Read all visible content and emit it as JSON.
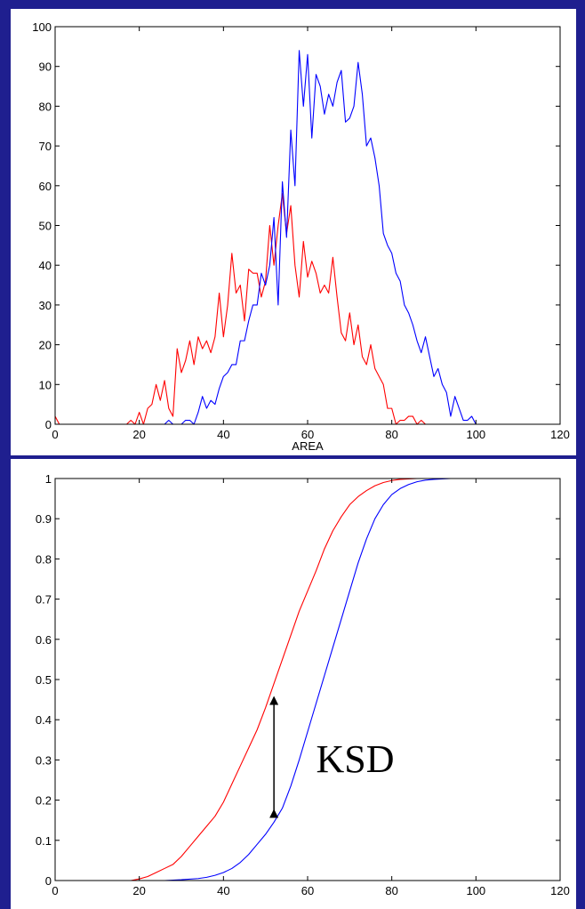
{
  "chart_data": [
    {
      "type": "line",
      "title": "",
      "xlabel": "AREA",
      "ylabel": "",
      "xlim": [
        0,
        120
      ],
      "ylim": [
        0,
        100
      ],
      "xticks": [
        0,
        20,
        40,
        60,
        80,
        100,
        120
      ],
      "yticks": [
        0,
        10,
        20,
        30,
        40,
        50,
        60,
        70,
        80,
        90,
        100
      ],
      "grid": false,
      "series": [
        {
          "color": "#ff0000",
          "x": [
            0,
            1,
            2,
            17,
            18,
            19,
            20,
            21,
            22,
            23,
            24,
            25,
            26,
            27,
            28,
            29,
            30,
            31,
            32,
            33,
            34,
            35,
            36,
            37,
            38,
            39,
            40,
            41,
            42,
            43,
            44,
            45,
            46,
            47,
            48,
            49,
            50,
            51,
            52,
            53,
            54,
            55,
            56,
            57,
            58,
            59,
            60,
            61,
            62,
            63,
            64,
            65,
            66,
            67,
            68,
            69,
            70,
            71,
            72,
            73,
            74,
            75,
            76,
            77,
            78,
            79,
            80,
            81,
            82,
            83,
            84,
            85,
            86,
            87,
            88,
            90,
            95,
            100
          ],
          "y": [
            2,
            0,
            0,
            0,
            1,
            0,
            3,
            0,
            4,
            5,
            10,
            6,
            11,
            4,
            2,
            19,
            13,
            16,
            21,
            15,
            22,
            19,
            21,
            18,
            22,
            33,
            22,
            30,
            43,
            33,
            35,
            26,
            39,
            38,
            38,
            32,
            36,
            50,
            40,
            50,
            58,
            48,
            55,
            40,
            32,
            46,
            37,
            41,
            38,
            33,
            35,
            33,
            42,
            32,
            23,
            21,
            28,
            20,
            25,
            17,
            15,
            20,
            14,
            12,
            10,
            4,
            4,
            0,
            1,
            1,
            2,
            2,
            0,
            1,
            0,
            0,
            0,
            0
          ]
        },
        {
          "color": "#0000ff",
          "x": [
            0,
            26,
            27,
            28,
            29,
            30,
            31,
            32,
            33,
            34,
            35,
            36,
            37,
            38,
            39,
            40,
            41,
            42,
            43,
            44,
            45,
            46,
            47,
            48,
            49,
            50,
            51,
            52,
            53,
            54,
            55,
            56,
            57,
            58,
            59,
            60,
            61,
            62,
            63,
            64,
            65,
            66,
            67,
            68,
            69,
            70,
            71,
            72,
            73,
            74,
            75,
            76,
            77,
            78,
            79,
            80,
            81,
            82,
            83,
            84,
            85,
            86,
            87,
            88,
            89,
            90,
            91,
            92,
            93,
            94,
            95,
            96,
            97,
            98,
            99,
            100
          ],
          "y": [
            0,
            0,
            1,
            0,
            0,
            0,
            1,
            1,
            0,
            3,
            7,
            4,
            6,
            5,
            9,
            12,
            13,
            15,
            15,
            21,
            21,
            26,
            30,
            30,
            38,
            35,
            40,
            52,
            30,
            61,
            47,
            74,
            60,
            94,
            80,
            93,
            72,
            88,
            85,
            78,
            83,
            80,
            86,
            89,
            76,
            77,
            80,
            91,
            83,
            70,
            72,
            67,
            60,
            48,
            45,
            43,
            38,
            36,
            30,
            28,
            25,
            21,
            18,
            22,
            17,
            12,
            14,
            10,
            8,
            2,
            7,
            4,
            1,
            1,
            2,
            0
          ]
        }
      ]
    },
    {
      "type": "line",
      "title": "",
      "xlabel": "",
      "ylabel": "",
      "xlim": [
        0,
        120
      ],
      "ylim": [
        0,
        1
      ],
      "xticks": [
        0,
        20,
        40,
        60,
        80,
        100,
        120
      ],
      "yticks": [
        0,
        0.1,
        0.2,
        0.3,
        0.4,
        0.5,
        0.6,
        0.7,
        0.8,
        0.9,
        1
      ],
      "grid": false,
      "series": [
        {
          "color": "#ff0000",
          "x": [
            0,
            18,
            20,
            22,
            24,
            26,
            28,
            30,
            32,
            34,
            36,
            38,
            40,
            42,
            44,
            46,
            48,
            50,
            52,
            54,
            56,
            58,
            60,
            62,
            64,
            66,
            68,
            70,
            72,
            74,
            76,
            78,
            80,
            82,
            84,
            86,
            88,
            90,
            100,
            101
          ],
          "y": [
            0,
            0,
            0.004,
            0.01,
            0.02,
            0.03,
            0.04,
            0.06,
            0.085,
            0.11,
            0.135,
            0.16,
            0.195,
            0.24,
            0.285,
            0.33,
            0.375,
            0.43,
            0.49,
            0.55,
            0.61,
            0.67,
            0.72,
            0.77,
            0.825,
            0.87,
            0.905,
            0.935,
            0.955,
            0.97,
            0.982,
            0.99,
            0.995,
            0.998,
            0.999,
            1,
            1,
            1,
            1,
            1
          ]
        },
        {
          "color": "#0000ff",
          "x": [
            0,
            26,
            30,
            34,
            36,
            38,
            40,
            42,
            44,
            46,
            48,
            50,
            52,
            54,
            56,
            58,
            60,
            62,
            64,
            66,
            68,
            70,
            72,
            74,
            76,
            78,
            80,
            82,
            84,
            86,
            88,
            90,
            92,
            94,
            100,
            101
          ],
          "y": [
            0,
            0,
            0.002,
            0.005,
            0.008,
            0.013,
            0.02,
            0.03,
            0.045,
            0.065,
            0.09,
            0.115,
            0.145,
            0.18,
            0.235,
            0.3,
            0.37,
            0.44,
            0.51,
            0.58,
            0.65,
            0.72,
            0.79,
            0.85,
            0.9,
            0.935,
            0.96,
            0.975,
            0.985,
            0.992,
            0.996,
            0.998,
            0.999,
            1,
            1,
            1
          ]
        }
      ],
      "annotations": [
        {
          "text": "KSD",
          "x": 62,
          "y": 0.27
        }
      ],
      "arrow": {
        "x": 52,
        "y_start": 0.145,
        "y_end": 0.47,
        "color": "#000000"
      }
    }
  ]
}
